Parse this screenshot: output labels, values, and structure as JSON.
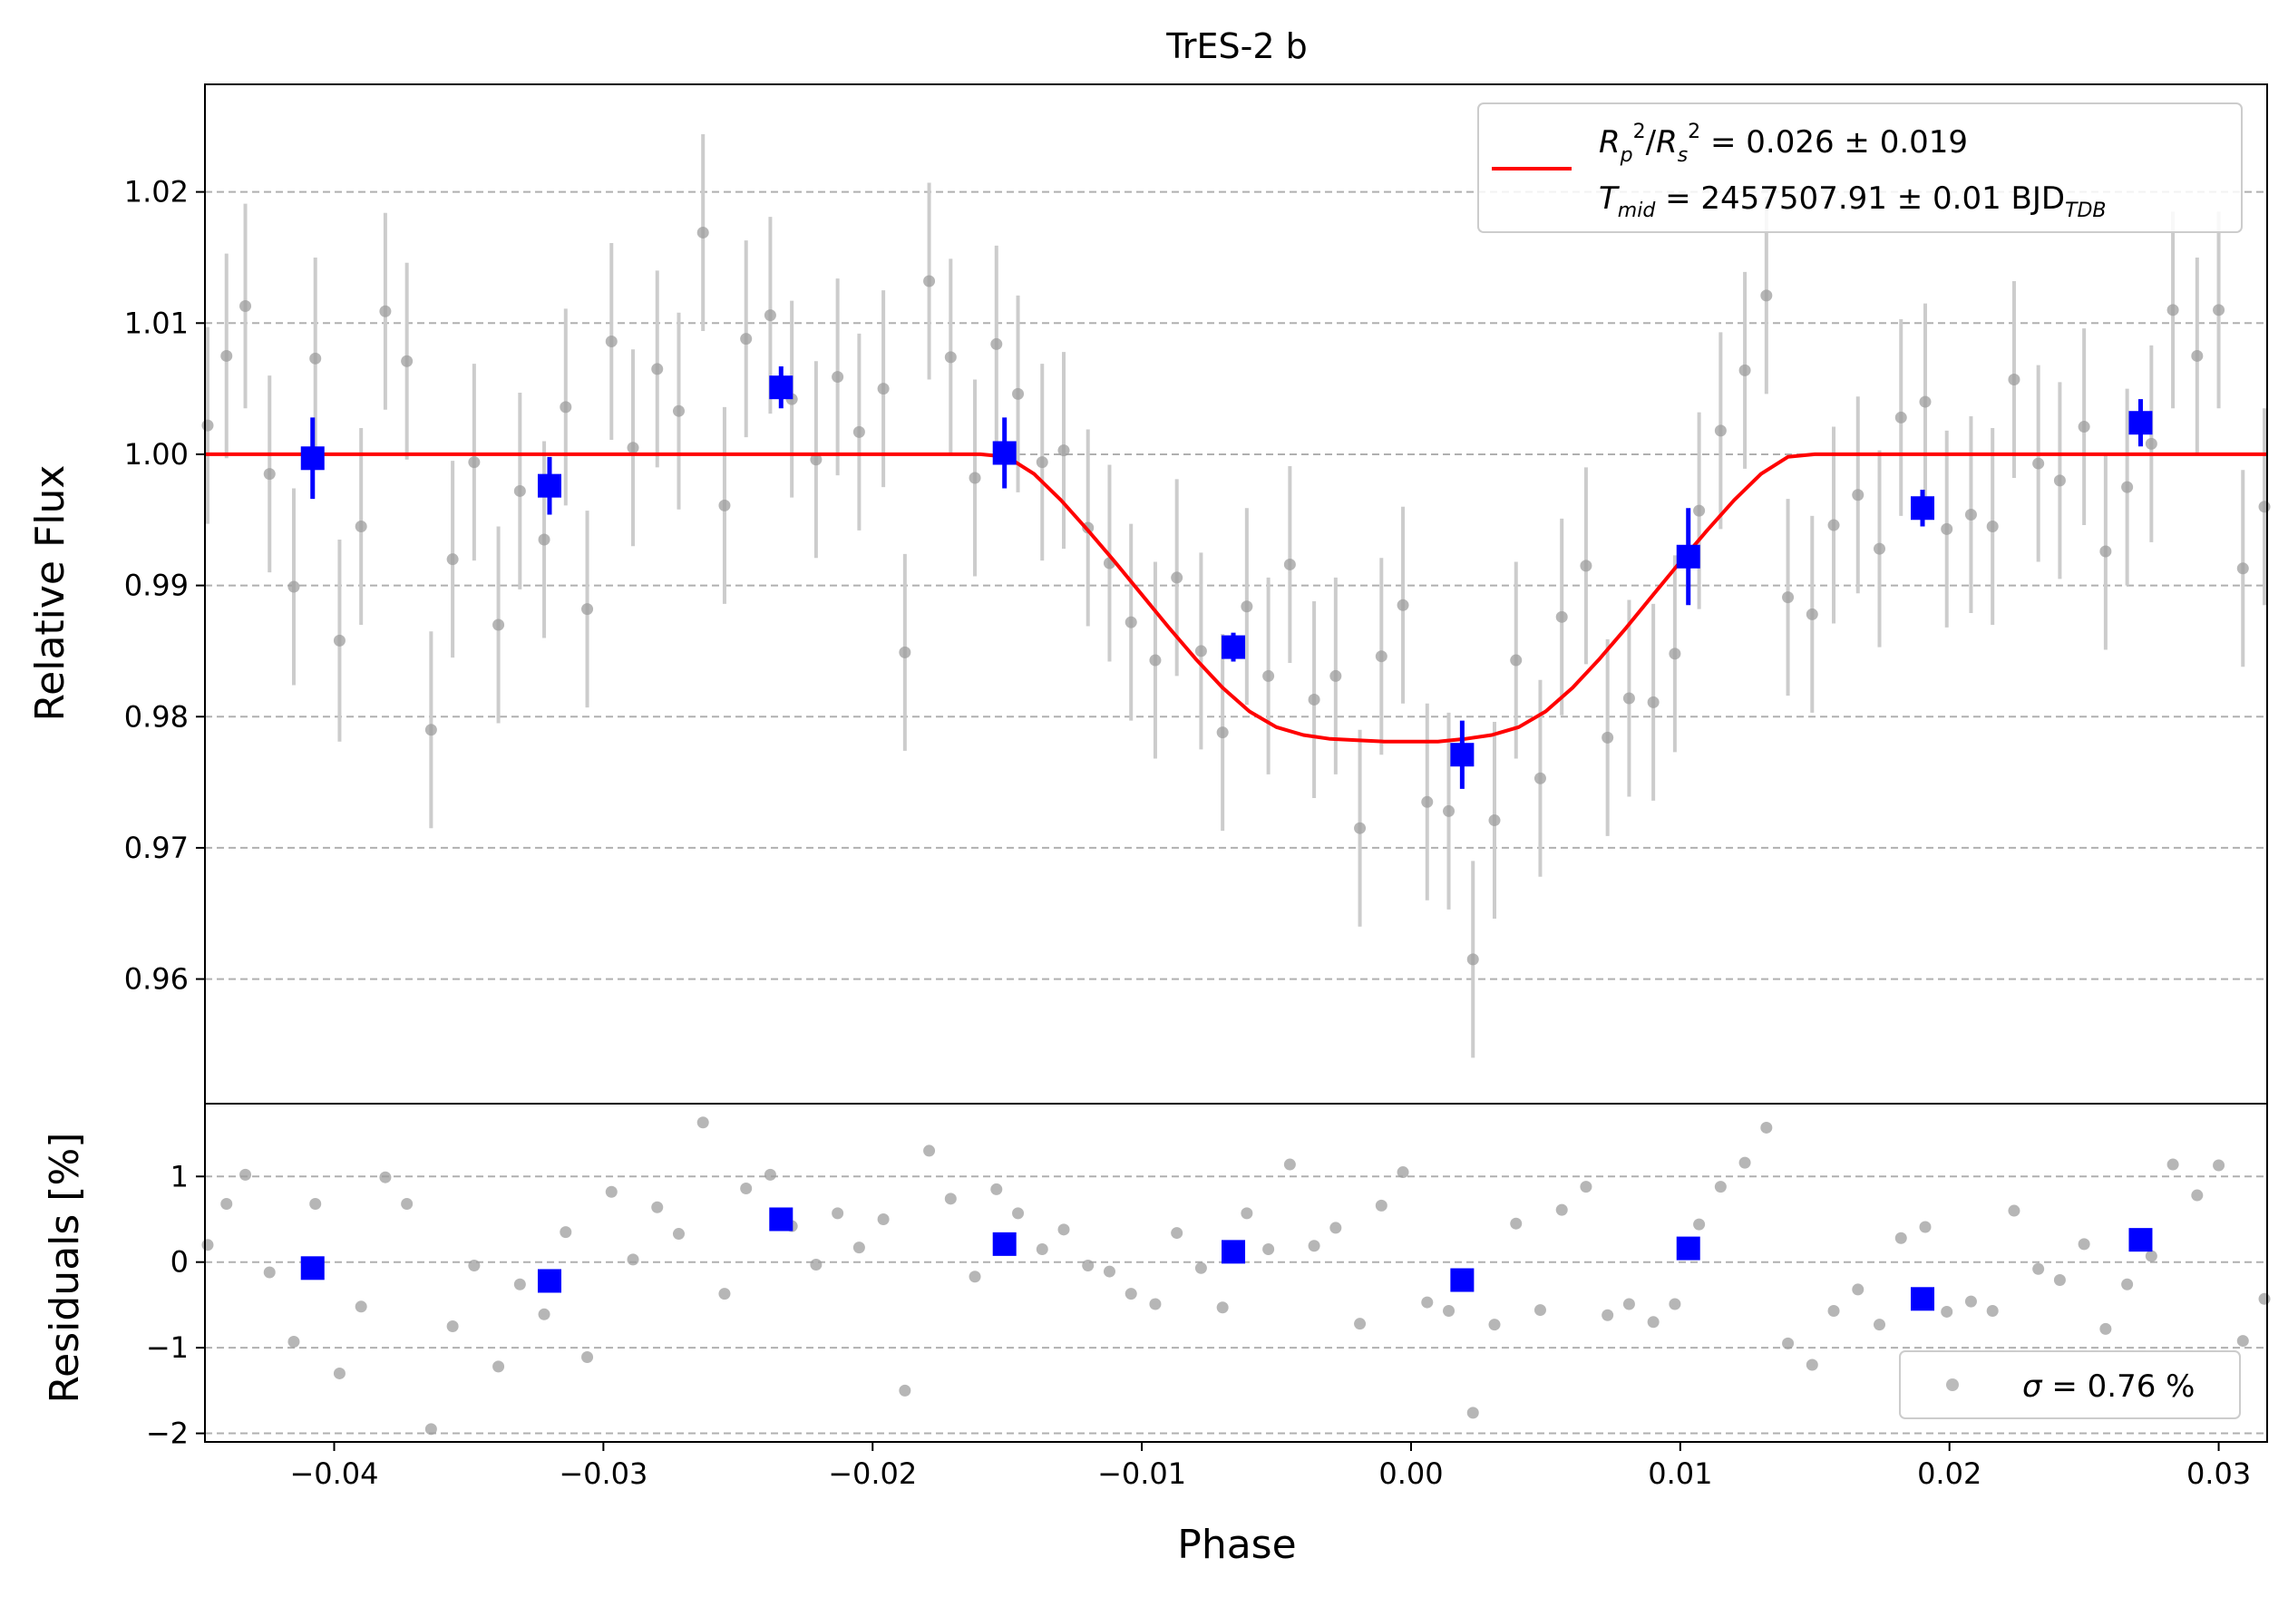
{
  "chart_data": {
    "type": "scatter",
    "title": "TrES-2 b",
    "xlabel": "Phase",
    "top_panel": {
      "ylabel": "Relative Flux",
      "xlim": [
        -0.0448,
        0.0318
      ],
      "ylim": [
        0.9505,
        1.0282
      ],
      "yticks": [
        0.96,
        0.97,
        0.98,
        0.99,
        1.0,
        1.01,
        1.02
      ],
      "ytick_labels": [
        "0.96",
        "0.97",
        "0.98",
        "0.99",
        "1.00",
        "1.01",
        "1.02"
      ],
      "grid": "horizontal dashed",
      "legend": {
        "placement": "top-right",
        "line1": "R_p^2/R_s^2 = 0.026 ± 0.019",
        "line2": "T_mid = 2457507.91 ± 0.01 BJD_TDB"
      },
      "model": {
        "name": "transit model",
        "color": "#ff0000",
        "x": [
          -0.0448,
          -0.016,
          -0.015,
          -0.014,
          -0.013,
          -0.012,
          -0.011,
          -0.01,
          -0.009,
          -0.008,
          -0.007,
          -0.006,
          -0.005,
          -0.004,
          -0.003,
          -0.002,
          -0.001,
          0.0,
          0.001,
          0.002,
          0.003,
          0.004,
          0.005,
          0.006,
          0.007,
          0.008,
          0.009,
          0.01,
          0.011,
          0.012,
          0.013,
          0.014,
          0.015,
          0.016,
          0.0318
        ],
        "y": [
          1.0,
          1.0,
          0.9998,
          0.9985,
          0.9965,
          0.9942,
          0.9918,
          0.9893,
          0.9868,
          0.9844,
          0.9822,
          0.9804,
          0.9792,
          0.9786,
          0.9783,
          0.9782,
          0.9781,
          0.9781,
          0.9781,
          0.9783,
          0.9786,
          0.9792,
          0.9804,
          0.9822,
          0.9844,
          0.9868,
          0.9893,
          0.9918,
          0.9942,
          0.9965,
          0.9985,
          0.9998,
          1.0,
          1.0,
          1.0
        ]
      },
      "raw_points": {
        "name": "raw data",
        "color": "#9e9e9e",
        "err_color": "#cccccc",
        "x": [
          -0.0447,
          -0.044,
          -0.0433,
          -0.0424,
          -0.0415,
          -0.0407,
          -0.0398,
          -0.039,
          -0.0381,
          -0.0373,
          -0.0364,
          -0.0356,
          -0.0348,
          -0.0339,
          -0.0331,
          -0.0322,
          -0.0314,
          -0.0306,
          -0.0297,
          -0.0289,
          -0.028,
          -0.0272,
          -0.0263,
          -0.0255,
          -0.0247,
          -0.0238,
          -0.023,
          -0.0221,
          -0.0213,
          -0.0205,
          -0.0196,
          -0.0188,
          -0.0179,
          -0.0171,
          -0.0162,
          -0.0154,
          -0.0146,
          -0.0137,
          -0.0129,
          -0.012,
          -0.0112,
          -0.0104,
          -0.0095,
          -0.0087,
          -0.0078,
          -0.007,
          -0.0061,
          -0.0053,
          -0.0045,
          -0.0036,
          -0.0028,
          -0.0019,
          -0.0011,
          -0.0003,
          0.0006,
          0.0014,
          0.0023,
          0.0031,
          0.0039,
          0.0048,
          0.0056,
          0.0065,
          0.0073,
          0.0081,
          0.009,
          0.0098,
          0.0107,
          0.0115,
          0.0124,
          0.0132,
          0.014,
          0.0149,
          0.0157,
          0.0166,
          0.0174,
          0.0182,
          0.0191,
          0.0199,
          0.0208,
          0.0216,
          0.0224,
          0.0233,
          0.0241,
          0.025,
          0.0258,
          0.0266,
          0.0275,
          0.0283,
          0.0292,
          0.03,
          0.0309,
          0.0317
        ],
        "y": [
          1.0022,
          1.0075,
          1.0113,
          0.9985,
          0.9899,
          1.0073,
          0.9858,
          0.9945,
          1.0109,
          1.0071,
          0.979,
          0.992,
          0.9994,
          0.987,
          0.9972,
          0.9935,
          1.0036,
          0.9882,
          1.0086,
          1.0005,
          1.0065,
          1.0033,
          1.0169,
          0.9961,
          1.0088,
          1.0106,
          1.0042,
          0.9996,
          1.0059,
          1.0017,
          1.005,
          0.9849,
          1.0132,
          1.0074,
          0.9982,
          1.0084,
          1.0046,
          0.9994,
          1.0003,
          0.9944,
          0.9917,
          0.9872,
          0.9843,
          0.9906,
          0.985,
          0.9788,
          0.9884,
          0.9831,
          0.9916,
          0.9813,
          0.9831,
          0.9715,
          0.9846,
          0.9885,
          0.9735,
          0.9728,
          0.9615,
          0.9721,
          0.9843,
          0.9753,
          0.9876,
          0.9915,
          0.9784,
          0.9814,
          0.9811,
          0.9848,
          0.9957,
          1.0018,
          1.0064,
          1.0121,
          0.9891,
          0.9878,
          0.9946,
          0.9969,
          0.9928,
          1.0028,
          1.004,
          0.9943,
          0.9954,
          0.9945,
          1.0057,
          0.9993,
          0.998,
          1.0021,
          0.9926,
          0.9975,
          1.0008,
          1.011,
          1.0075,
          1.011,
          0.9913,
          0.996
        ],
        "err": [
          0.0075,
          0.0078,
          0.0078,
          0.0075,
          0.0075,
          0.0077,
          0.0077,
          0.0075,
          0.0075,
          0.0075,
          0.0075,
          0.0075,
          0.0075,
          0.0075,
          0.0075,
          0.0075,
          0.0075,
          0.0075,
          0.0075,
          0.0075,
          0.0075,
          0.0075,
          0.0075,
          0.0075,
          0.0075,
          0.0075,
          0.0075,
          0.0075,
          0.0075,
          0.0075,
          0.0075,
          0.0075,
          0.0075,
          0.0075,
          0.0075,
          0.0075,
          0.0075,
          0.0075,
          0.0075,
          0.0075,
          0.0075,
          0.0075,
          0.0075,
          0.0075,
          0.0075,
          0.0075,
          0.0075,
          0.0075,
          0.0075,
          0.0075,
          0.0075,
          0.0075,
          0.0075,
          0.0075,
          0.0075,
          0.0075,
          0.0075,
          0.0075,
          0.0075,
          0.0075,
          0.0075,
          0.0075,
          0.0075,
          0.0075,
          0.0075,
          0.0075,
          0.0075,
          0.0075,
          0.0075,
          0.0075,
          0.0075,
          0.0075,
          0.0075,
          0.0075,
          0.0075,
          0.0075,
          0.0075,
          0.0075,
          0.0075,
          0.0075,
          0.0075,
          0.0075,
          0.0075,
          0.0075,
          0.0075,
          0.0075,
          0.0075,
          0.0075,
          0.0075,
          0.0075,
          0.0075,
          0.0075
        ]
      },
      "binned_points": {
        "name": "binned data",
        "color": "#0000ff",
        "x": [
          -0.0408,
          -0.032,
          -0.0234,
          -0.0151,
          -0.0066,
          0.0019,
          0.0103,
          0.019,
          0.0271
        ],
        "y": [
          0.9997,
          0.9976,
          1.0051,
          1.0001,
          0.9853,
          0.9771,
          0.9922,
          0.9959,
          1.0024
        ],
        "err": [
          0.0031,
          0.0022,
          0.0016,
          0.0027,
          0.0011,
          0.0026,
          0.0037,
          0.0014,
          0.0018
        ]
      }
    },
    "bottom_panel": {
      "ylabel": "Residuals [%]",
      "xlim": [
        -0.0448,
        0.0318
      ],
      "ylim": [
        -2.1,
        1.85
      ],
      "yticks": [
        -2,
        -1,
        0,
        1
      ],
      "ytick_labels": [
        "−2",
        "−1",
        "0",
        "1"
      ],
      "xticks": [
        -0.04,
        -0.03,
        -0.02,
        -0.01,
        0.0,
        0.01,
        0.02,
        0.03
      ],
      "xtick_labels": [
        "−0.04",
        "−0.03",
        "−0.02",
        "−0.01",
        "0.00",
        "0.01",
        "0.02",
        "0.03"
      ],
      "grid": "horizontal dashed",
      "legend": {
        "placement": "bottom-right",
        "text": "σ = 0.76 %"
      },
      "raw_residuals": {
        "name": "residuals",
        "color": "#9e9e9e",
        "x": [
          -0.0447,
          -0.044,
          -0.0433,
          -0.0424,
          -0.0415,
          -0.0407,
          -0.0398,
          -0.039,
          -0.0381,
          -0.0373,
          -0.0364,
          -0.0356,
          -0.0348,
          -0.0339,
          -0.0331,
          -0.0322,
          -0.0314,
          -0.0306,
          -0.0297,
          -0.0289,
          -0.028,
          -0.0272,
          -0.0263,
          -0.0255,
          -0.0247,
          -0.0238,
          -0.023,
          -0.0221,
          -0.0213,
          -0.0205,
          -0.0196,
          -0.0188,
          -0.0179,
          -0.0171,
          -0.0162,
          -0.0154,
          -0.0146,
          -0.0137,
          -0.0129,
          -0.012,
          -0.0112,
          -0.0104,
          -0.0095,
          -0.0087,
          -0.0078,
          -0.007,
          -0.0061,
          -0.0053,
          -0.0045,
          -0.0036,
          -0.0028,
          -0.0019,
          -0.0011,
          -0.0003,
          0.0006,
          0.0014,
          0.0023,
          0.0031,
          0.0039,
          0.0048,
          0.0056,
          0.0065,
          0.0073,
          0.0081,
          0.009,
          0.0098,
          0.0107,
          0.0115,
          0.0124,
          0.0132,
          0.014,
          0.0149,
          0.0157,
          0.0166,
          0.0174,
          0.0182,
          0.0191,
          0.0199,
          0.0208,
          0.0216,
          0.0224,
          0.0233,
          0.0241,
          0.025,
          0.0258,
          0.0266,
          0.0275,
          0.0283,
          0.0292,
          0.03,
          0.0309,
          0.0317
        ],
        "y": [
          0.2,
          0.68,
          1.02,
          -0.12,
          -0.93,
          0.68,
          -1.3,
          -0.52,
          0.99,
          0.68,
          -1.95,
          -0.75,
          -0.04,
          -1.22,
          -0.26,
          -0.61,
          0.35,
          -1.11,
          0.82,
          0.03,
          0.64,
          0.33,
          1.63,
          -0.37,
          0.86,
          1.02,
          0.42,
          -0.03,
          0.57,
          0.17,
          0.5,
          -1.5,
          1.3,
          0.74,
          -0.17,
          0.85,
          0.57,
          0.15,
          0.38,
          -0.04,
          -0.11,
          -0.37,
          -0.49,
          0.34,
          -0.07,
          -0.53,
          0.57,
          0.15,
          1.14,
          0.19,
          0.4,
          -0.72,
          0.66,
          1.05,
          -0.47,
          -0.57,
          -1.76,
          -0.73,
          0.45,
          -0.56,
          0.61,
          0.88,
          -0.62,
          -0.49,
          -0.7,
          -0.49,
          0.44,
          0.88,
          1.16,
          1.57,
          -0.95,
          -1.2,
          -0.57,
          -0.32,
          -0.73,
          0.28,
          0.41,
          -0.58,
          -0.46,
          -0.57,
          0.6,
          -0.08,
          -0.21,
          0.21,
          -0.78,
          -0.26,
          0.07,
          1.14,
          0.78,
          1.13,
          -0.92,
          -0.43
        ]
      },
      "binned_residuals": {
        "name": "binned residuals",
        "color": "#0000ff",
        "x": [
          -0.0408,
          -0.032,
          -0.0234,
          -0.0151,
          -0.0066,
          0.0019,
          0.0103,
          0.019,
          0.0271
        ],
        "y": [
          -0.07,
          -0.22,
          0.5,
          0.21,
          0.12,
          -0.21,
          0.16,
          -0.43,
          0.26
        ]
      }
    }
  }
}
